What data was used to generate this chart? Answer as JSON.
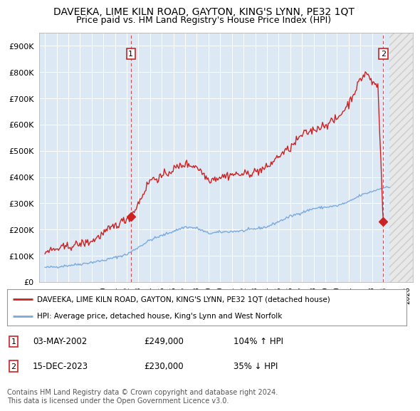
{
  "title": "DAVEEKA, LIME KILN ROAD, GAYTON, KING'S LYNN, PE32 1QT",
  "subtitle": "Price paid vs. HM Land Registry's House Price Index (HPI)",
  "ylim": [
    0,
    950000
  ],
  "yticks": [
    0,
    100000,
    200000,
    300000,
    400000,
    500000,
    600000,
    700000,
    800000,
    900000
  ],
  "ytick_labels": [
    "£0",
    "£100K",
    "£200K",
    "£300K",
    "£400K",
    "£500K",
    "£600K",
    "£700K",
    "£800K",
    "£900K"
  ],
  "xlim_start": 1994.5,
  "xlim_end": 2026.5,
  "hatch_start": 2024.5,
  "chart_bg": "#dce9f5",
  "background_color": "#ffffff",
  "grid_color": "#ffffff",
  "red_color": "#cc2222",
  "blue_color": "#7aaadd",
  "title_fontsize": 10,
  "subtitle_fontsize": 9,
  "sale1_x": 2002.35,
  "sale1_y": 249000,
  "sale1_label": "1",
  "sale1_date": "03-MAY-2002",
  "sale1_price": "£249,000",
  "sale1_hpi": "104% ↑ HPI",
  "sale2_x": 2023.96,
  "sale2_y": 230000,
  "sale2_label": "2",
  "sale2_date": "15-DEC-2023",
  "sale2_price": "£230,000",
  "sale2_hpi": "35% ↓ HPI",
  "legend_line1": "DAVEEKA, LIME KILN ROAD, GAYTON, KING'S LYNN, PE32 1QT (detached house)",
  "legend_line2": "HPI: Average price, detached house, King's Lynn and West Norfolk",
  "footnote": "Contains HM Land Registry data © Crown copyright and database right 2024.\nThis data is licensed under the Open Government Licence v3.0."
}
